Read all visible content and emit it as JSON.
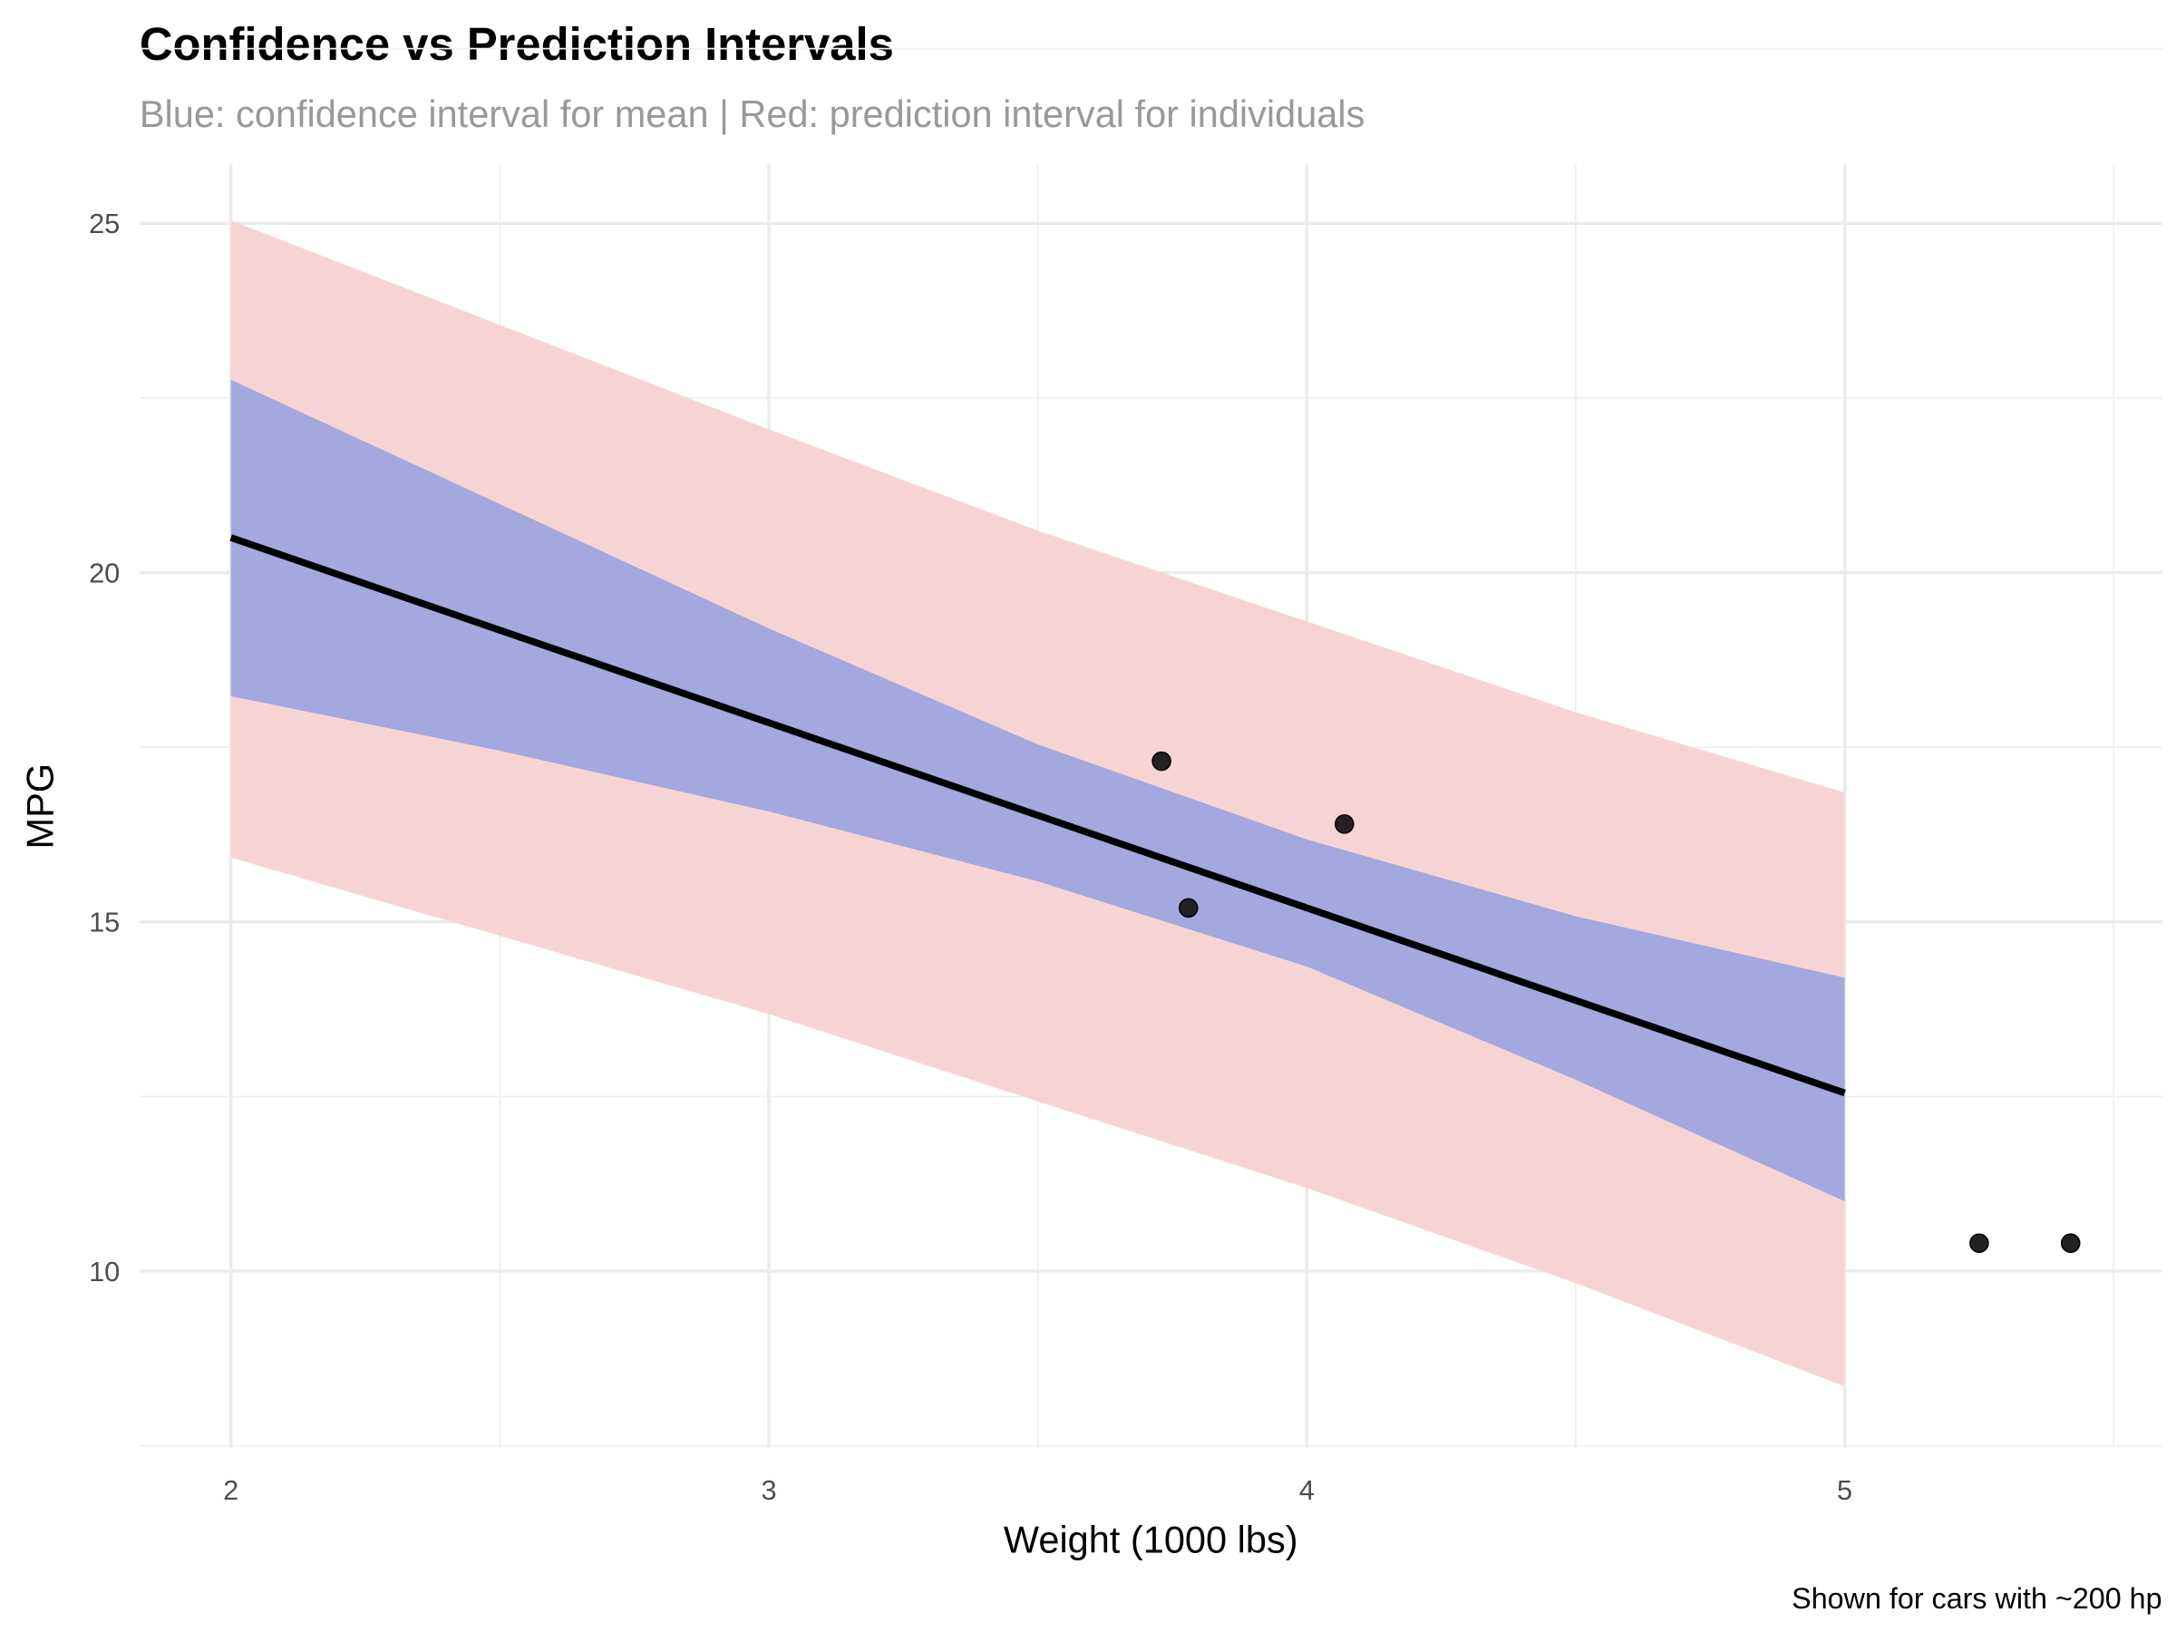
{
  "chart_data": {
    "type": "line",
    "title": "Confidence vs Prediction Intervals",
    "subtitle": "Blue: confidence interval for mean | Red: prediction interval for individuals",
    "xlabel": "Weight (1000 lbs)",
    "ylabel": "MPG",
    "caption": "Shown for cars with ~200 hp",
    "xlim": [
      1.83,
      5.59
    ],
    "ylim": [
      7.47,
      25.84
    ],
    "x_ticks": [
      2,
      3,
      4,
      5
    ],
    "y_ticks": [
      10,
      15,
      20,
      25
    ],
    "grid": true,
    "legend": "none",
    "fit_line": {
      "x": [
        2,
        5
      ],
      "y": [
        20.5,
        12.55
      ],
      "color": "#000000"
    },
    "confidence_band": {
      "color": "#a3a8de",
      "x": [
        2,
        2.5,
        3,
        3.5,
        4,
        4.5,
        5
      ],
      "upper": [
        22.76,
        20.98,
        19.2,
        17.54,
        16.18,
        15.08,
        14.2
      ],
      "lower": [
        18.23,
        17.45,
        16.58,
        15.58,
        14.36,
        12.74,
        11.0
      ]
    },
    "prediction_band": {
      "color": "#f7d4d4",
      "x": [
        2,
        3,
        3.5,
        4,
        4.5,
        5
      ],
      "upper": [
        25.04,
        22.05,
        20.6,
        19.3,
        18.0,
        16.85
      ],
      "lower": [
        15.92,
        13.68,
        12.43,
        11.19,
        9.83,
        8.35
      ]
    },
    "points": {
      "color": "#222222",
      "x": [
        3.73,
        3.78,
        4.07,
        5.25,
        5.42
      ],
      "y": [
        17.3,
        15.2,
        16.4,
        10.4,
        10.4
      ]
    }
  }
}
